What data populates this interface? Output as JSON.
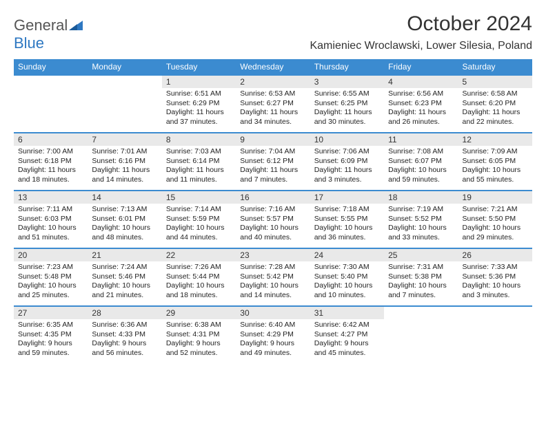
{
  "brand": {
    "general": "General",
    "blue": "Blue"
  },
  "title": "October 2024",
  "location": "Kamieniec Wroclawski, Lower Silesia, Poland",
  "colors": {
    "header_bg": "#3b8bd0",
    "header_text": "#ffffff",
    "daynum_bg": "#e9e9e9",
    "row_divider": "#3b8bd0",
    "logo_blue": "#2e78c2",
    "text": "#333333",
    "body_text": "#222222",
    "page_bg": "#ffffff"
  },
  "typography": {
    "month_title_fontsize": 30,
    "location_fontsize": 16,
    "weekday_fontsize": 12,
    "daynum_fontsize": 12,
    "cell_fontsize": 10.5,
    "logo_fontsize": 22
  },
  "weekdays": [
    "Sunday",
    "Monday",
    "Tuesday",
    "Wednesday",
    "Thursday",
    "Friday",
    "Saturday"
  ],
  "weeks": [
    [
      {
        "day": "",
        "sunrise": "",
        "sunset": "",
        "daylight": ""
      },
      {
        "day": "",
        "sunrise": "",
        "sunset": "",
        "daylight": ""
      },
      {
        "day": "1",
        "sunrise": "Sunrise: 6:51 AM",
        "sunset": "Sunset: 6:29 PM",
        "daylight": "Daylight: 11 hours and 37 minutes."
      },
      {
        "day": "2",
        "sunrise": "Sunrise: 6:53 AM",
        "sunset": "Sunset: 6:27 PM",
        "daylight": "Daylight: 11 hours and 34 minutes."
      },
      {
        "day": "3",
        "sunrise": "Sunrise: 6:55 AM",
        "sunset": "Sunset: 6:25 PM",
        "daylight": "Daylight: 11 hours and 30 minutes."
      },
      {
        "day": "4",
        "sunrise": "Sunrise: 6:56 AM",
        "sunset": "Sunset: 6:23 PM",
        "daylight": "Daylight: 11 hours and 26 minutes."
      },
      {
        "day": "5",
        "sunrise": "Sunrise: 6:58 AM",
        "sunset": "Sunset: 6:20 PM",
        "daylight": "Daylight: 11 hours and 22 minutes."
      }
    ],
    [
      {
        "day": "6",
        "sunrise": "Sunrise: 7:00 AM",
        "sunset": "Sunset: 6:18 PM",
        "daylight": "Daylight: 11 hours and 18 minutes."
      },
      {
        "day": "7",
        "sunrise": "Sunrise: 7:01 AM",
        "sunset": "Sunset: 6:16 PM",
        "daylight": "Daylight: 11 hours and 14 minutes."
      },
      {
        "day": "8",
        "sunrise": "Sunrise: 7:03 AM",
        "sunset": "Sunset: 6:14 PM",
        "daylight": "Daylight: 11 hours and 11 minutes."
      },
      {
        "day": "9",
        "sunrise": "Sunrise: 7:04 AM",
        "sunset": "Sunset: 6:12 PM",
        "daylight": "Daylight: 11 hours and 7 minutes."
      },
      {
        "day": "10",
        "sunrise": "Sunrise: 7:06 AM",
        "sunset": "Sunset: 6:09 PM",
        "daylight": "Daylight: 11 hours and 3 minutes."
      },
      {
        "day": "11",
        "sunrise": "Sunrise: 7:08 AM",
        "sunset": "Sunset: 6:07 PM",
        "daylight": "Daylight: 10 hours and 59 minutes."
      },
      {
        "day": "12",
        "sunrise": "Sunrise: 7:09 AM",
        "sunset": "Sunset: 6:05 PM",
        "daylight": "Daylight: 10 hours and 55 minutes."
      }
    ],
    [
      {
        "day": "13",
        "sunrise": "Sunrise: 7:11 AM",
        "sunset": "Sunset: 6:03 PM",
        "daylight": "Daylight: 10 hours and 51 minutes."
      },
      {
        "day": "14",
        "sunrise": "Sunrise: 7:13 AM",
        "sunset": "Sunset: 6:01 PM",
        "daylight": "Daylight: 10 hours and 48 minutes."
      },
      {
        "day": "15",
        "sunrise": "Sunrise: 7:14 AM",
        "sunset": "Sunset: 5:59 PM",
        "daylight": "Daylight: 10 hours and 44 minutes."
      },
      {
        "day": "16",
        "sunrise": "Sunrise: 7:16 AM",
        "sunset": "Sunset: 5:57 PM",
        "daylight": "Daylight: 10 hours and 40 minutes."
      },
      {
        "day": "17",
        "sunrise": "Sunrise: 7:18 AM",
        "sunset": "Sunset: 5:55 PM",
        "daylight": "Daylight: 10 hours and 36 minutes."
      },
      {
        "day": "18",
        "sunrise": "Sunrise: 7:19 AM",
        "sunset": "Sunset: 5:52 PM",
        "daylight": "Daylight: 10 hours and 33 minutes."
      },
      {
        "day": "19",
        "sunrise": "Sunrise: 7:21 AM",
        "sunset": "Sunset: 5:50 PM",
        "daylight": "Daylight: 10 hours and 29 minutes."
      }
    ],
    [
      {
        "day": "20",
        "sunrise": "Sunrise: 7:23 AM",
        "sunset": "Sunset: 5:48 PM",
        "daylight": "Daylight: 10 hours and 25 minutes."
      },
      {
        "day": "21",
        "sunrise": "Sunrise: 7:24 AM",
        "sunset": "Sunset: 5:46 PM",
        "daylight": "Daylight: 10 hours and 21 minutes."
      },
      {
        "day": "22",
        "sunrise": "Sunrise: 7:26 AM",
        "sunset": "Sunset: 5:44 PM",
        "daylight": "Daylight: 10 hours and 18 minutes."
      },
      {
        "day": "23",
        "sunrise": "Sunrise: 7:28 AM",
        "sunset": "Sunset: 5:42 PM",
        "daylight": "Daylight: 10 hours and 14 minutes."
      },
      {
        "day": "24",
        "sunrise": "Sunrise: 7:30 AM",
        "sunset": "Sunset: 5:40 PM",
        "daylight": "Daylight: 10 hours and 10 minutes."
      },
      {
        "day": "25",
        "sunrise": "Sunrise: 7:31 AM",
        "sunset": "Sunset: 5:38 PM",
        "daylight": "Daylight: 10 hours and 7 minutes."
      },
      {
        "day": "26",
        "sunrise": "Sunrise: 7:33 AM",
        "sunset": "Sunset: 5:36 PM",
        "daylight": "Daylight: 10 hours and 3 minutes."
      }
    ],
    [
      {
        "day": "27",
        "sunrise": "Sunrise: 6:35 AM",
        "sunset": "Sunset: 4:35 PM",
        "daylight": "Daylight: 9 hours and 59 minutes."
      },
      {
        "day": "28",
        "sunrise": "Sunrise: 6:36 AM",
        "sunset": "Sunset: 4:33 PM",
        "daylight": "Daylight: 9 hours and 56 minutes."
      },
      {
        "day": "29",
        "sunrise": "Sunrise: 6:38 AM",
        "sunset": "Sunset: 4:31 PM",
        "daylight": "Daylight: 9 hours and 52 minutes."
      },
      {
        "day": "30",
        "sunrise": "Sunrise: 6:40 AM",
        "sunset": "Sunset: 4:29 PM",
        "daylight": "Daylight: 9 hours and 49 minutes."
      },
      {
        "day": "31",
        "sunrise": "Sunrise: 6:42 AM",
        "sunset": "Sunset: 4:27 PM",
        "daylight": "Daylight: 9 hours and 45 minutes."
      },
      {
        "day": "",
        "sunrise": "",
        "sunset": "",
        "daylight": ""
      },
      {
        "day": "",
        "sunrise": "",
        "sunset": "",
        "daylight": ""
      }
    ]
  ]
}
